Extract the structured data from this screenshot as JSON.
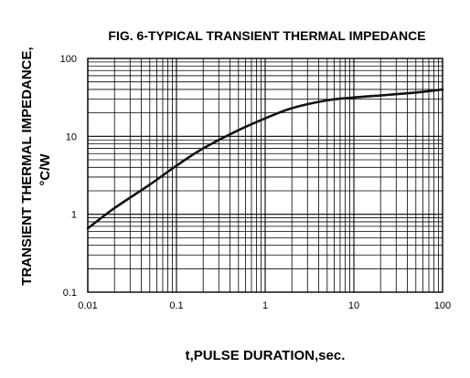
{
  "chart_data": {
    "type": "line",
    "title": "FIG. 6-TYPICAL TRANSIENT THERMAL IMPEDANCE",
    "xlabel": "t,PULSE DURATION,sec.",
    "ylabel_line1": "TRANSIENT THERMAL IMPEDANCE,",
    "ylabel_line2": "°C/W",
    "x_scale": "log",
    "y_scale": "log",
    "xlim": [
      0.01,
      100
    ],
    "ylim": [
      0.1,
      100
    ],
    "grid": true,
    "x_ticks": [
      {
        "value": 0.01,
        "label": "0.01"
      },
      {
        "value": 0.1,
        "label": "0.1"
      },
      {
        "value": 1,
        "label": "1"
      },
      {
        "value": 10,
        "label": "10"
      },
      {
        "value": 100,
        "label": "100"
      }
    ],
    "y_ticks": [
      {
        "value": 0.1,
        "label": "0.1"
      },
      {
        "value": 1,
        "label": "1"
      },
      {
        "value": 10,
        "label": "10"
      },
      {
        "value": 100,
        "label": "100"
      }
    ],
    "series": [
      {
        "color": "#111111",
        "x": [
          0.01,
          0.02,
          0.05,
          0.1,
          0.2,
          0.5,
          1,
          2,
          5,
          10,
          20,
          50,
          100
        ],
        "y": [
          0.66,
          1.2,
          2.4,
          4.2,
          7.0,
          12.0,
          17.0,
          23.0,
          29.0,
          31.5,
          33.5,
          36.5,
          40.0
        ]
      }
    ]
  }
}
